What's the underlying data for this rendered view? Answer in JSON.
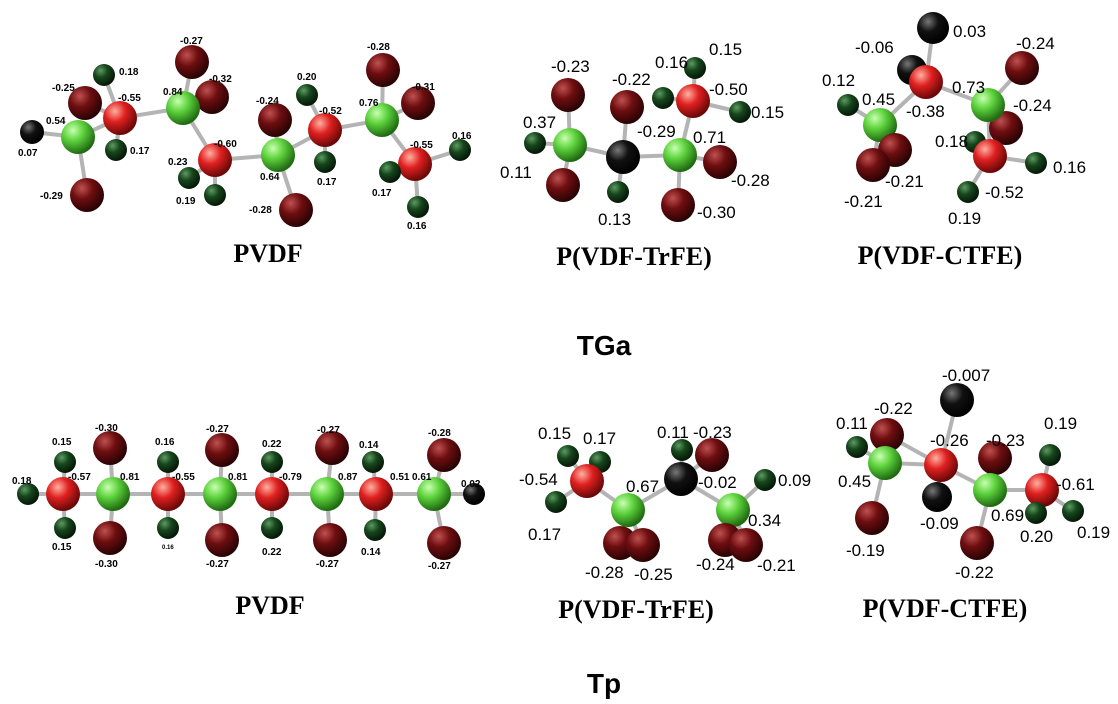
{
  "groups": [
    {
      "title": "TGa",
      "molecules": [
        {
          "name": "PVDF",
          "labels": [
            "-0.27",
            "0.18",
            "-0.25",
            "-0.55",
            "0.84",
            "-0.32",
            "0.54",
            "0.07",
            "0.17",
            "-0.29",
            "0.23",
            "-0.60",
            "0.19",
            "0.20",
            "-0.24",
            "-0.52",
            "0.64",
            "0.17",
            "-0.28",
            "-0.28",
            "0.76",
            "-0.31",
            "-0.55",
            "0.17",
            "0.16",
            "0.16"
          ]
        },
        {
          "name": "P(VDF-TrFE)",
          "labels": [
            "-0.23",
            "0.16",
            "0.15",
            "-0.22",
            "-0.50",
            "0.37",
            "-0.29",
            "0.15",
            "0.71",
            "0.11",
            "-0.28",
            "0.13",
            "-0.30"
          ]
        },
        {
          "name": "P(VDF-CTFE)",
          "labels": [
            "0.03",
            "-0.06",
            "-0.24",
            "0.12",
            "0.45",
            "-0.38",
            "0.73",
            "-0.24",
            "0.18",
            "-0.21",
            "-0.52",
            "0.16",
            "-0.21",
            "0.19"
          ]
        }
      ]
    },
    {
      "title": "Tp",
      "molecules": [
        {
          "name": "PVDF",
          "labels": [
            "-0.30",
            "-0.27",
            "-0.27",
            "-0.28",
            "0.15",
            "0.16",
            "0.22",
            "0.14",
            "0.18",
            "-0.57",
            "0.81",
            "-0.55",
            "0.81",
            "-0.79",
            "0.87",
            "0.51",
            "0.61",
            "0.02",
            "0.15",
            "0.16",
            "0.22",
            "0.14",
            "-0.30",
            "-0.27",
            "-0.27",
            "-0.27"
          ]
        },
        {
          "name": "P(VDF-TrFE)",
          "labels": [
            "0.15",
            "0.17",
            "0.11",
            "-0.23",
            "-0.54",
            "0.67",
            "-0.02",
            "0.09",
            "0.34",
            "0.17",
            "-0.28",
            "-0.25",
            "-0.24",
            "-0.21"
          ]
        },
        {
          "name": "P(VDF-CTFE)",
          "labels": [
            "-0.007",
            "0.11",
            "-0.22",
            "0.19",
            "-0.26",
            "-0.23",
            "0.45",
            "-0.61",
            "-0.09",
            "0.69",
            "0.20",
            "0.19",
            "-0.19",
            "-0.22"
          ]
        }
      ]
    }
  ],
  "colors": {
    "carbon": "#5dd23c",
    "fluorine": "#6e0e10",
    "hydrogen": "#16461c",
    "fluorine_bonded_carbon": "#e02020",
    "chlorine": "#111111",
    "bond": "#b4b4b4"
  }
}
